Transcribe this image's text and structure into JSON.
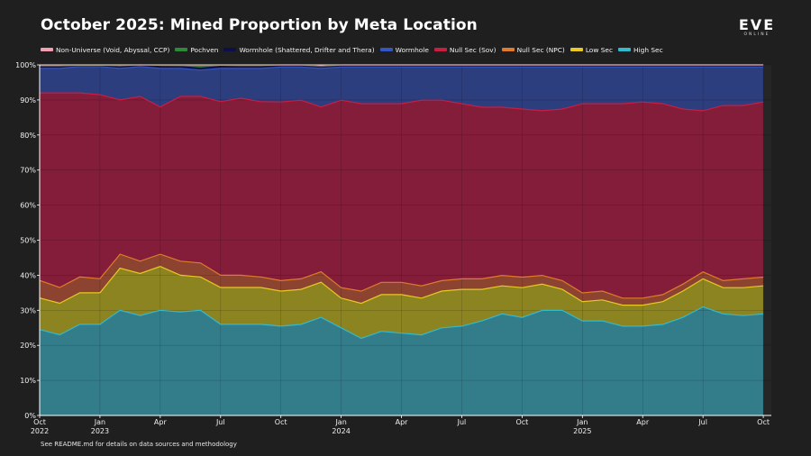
{
  "header": {
    "title": "October 2025: Mined Proportion by Meta Location",
    "logo_main": "EVE",
    "logo_sub": "ONLINE"
  },
  "footnote": "See README.md for details on data sources and methodology",
  "chart_data": {
    "type": "area",
    "stacked": true,
    "normalized": true,
    "title": "October 2025: Mined Proportion by Meta Location",
    "xlabel": "",
    "ylabel": "",
    "ylim": [
      0,
      100
    ],
    "yticks": [
      0,
      10,
      20,
      30,
      40,
      50,
      60,
      70,
      80,
      90,
      100
    ],
    "ytick_labels": [
      "0%",
      "10%",
      "20%",
      "30%",
      "40%",
      "50%",
      "60%",
      "70%",
      "80%",
      "90%",
      "100%"
    ],
    "x": [
      "2022-10",
      "2022-11",
      "2022-12",
      "2023-01",
      "2023-02",
      "2023-03",
      "2023-04",
      "2023-05",
      "2023-06",
      "2023-07",
      "2023-08",
      "2023-09",
      "2023-10",
      "2023-11",
      "2023-12",
      "2024-01",
      "2024-02",
      "2024-03",
      "2024-04",
      "2024-05",
      "2024-06",
      "2024-07",
      "2024-08",
      "2024-09",
      "2024-10",
      "2024-11",
      "2024-12",
      "2025-01",
      "2025-02",
      "2025-03",
      "2025-04",
      "2025-05",
      "2025-06",
      "2025-07",
      "2025-08",
      "2025-09",
      "2025-10"
    ],
    "xticks": [
      {
        "index": 0,
        "label": "Oct",
        "year": "2022"
      },
      {
        "index": 3,
        "label": "Jan",
        "year": "2023"
      },
      {
        "index": 6,
        "label": "Apr",
        "year": ""
      },
      {
        "index": 9,
        "label": "Jul",
        "year": ""
      },
      {
        "index": 12,
        "label": "Oct",
        "year": ""
      },
      {
        "index": 15,
        "label": "Jan",
        "year": "2024"
      },
      {
        "index": 18,
        "label": "Apr",
        "year": ""
      },
      {
        "index": 21,
        "label": "Jul",
        "year": ""
      },
      {
        "index": 24,
        "label": "Oct",
        "year": ""
      },
      {
        "index": 27,
        "label": "Jan",
        "year": "2025"
      },
      {
        "index": 30,
        "label": "Apr",
        "year": ""
      },
      {
        "index": 33,
        "label": "Jul",
        "year": ""
      },
      {
        "index": 36,
        "label": "Oct",
        "year": ""
      }
    ],
    "x_max_index": 36.4,
    "legend_position": "top-left",
    "grid": true,
    "series": [
      {
        "name": "High Sec",
        "color": "#35b9cc",
        "fill": "#337d8b",
        "values": [
          24.5,
          23,
          26,
          26,
          30,
          28.5,
          30,
          29.5,
          30,
          26,
          26,
          26,
          25.5,
          26,
          28,
          25,
          22,
          24,
          23.5,
          23,
          25,
          25.5,
          27,
          29,
          28,
          30,
          30,
          27,
          27,
          25.5,
          25.5,
          26,
          28,
          31,
          29,
          28.5,
          29
        ]
      },
      {
        "name": "Low Sec",
        "color": "#e8c824",
        "fill": "#8c8420",
        "values": [
          9,
          9,
          9,
          9,
          12,
          12,
          12.5,
          10.5,
          9.5,
          10.5,
          10.5,
          10.5,
          10,
          10,
          10,
          8.5,
          10,
          10.5,
          11,
          10.5,
          10.5,
          10.5,
          9,
          8,
          8.5,
          7.5,
          6,
          5.5,
          6,
          6,
          6,
          6.5,
          7.5,
          8,
          7.5,
          8,
          8
        ]
      },
      {
        "name": "Null Sec (NPC)",
        "color": "#e07a2c",
        "fill": "#8c4430",
        "values": [
          5,
          4.5,
          4.5,
          4,
          4,
          3.5,
          3.5,
          4,
          4,
          3.5,
          3.5,
          3,
          3,
          3,
          3,
          3,
          3.5,
          3.5,
          3.5,
          3.5,
          3,
          3,
          3,
          3,
          3,
          2.5,
          2.5,
          2.5,
          2.5,
          2,
          2,
          2,
          2,
          2,
          2,
          2.5,
          2.5
        ]
      },
      {
        "name": "Null Sec (Sov)",
        "color": "#c81e42",
        "fill": "#831d3a",
        "values": [
          53.5,
          55.5,
          52.5,
          52.5,
          44,
          47,
          42,
          47,
          47.5,
          49.5,
          50.5,
          50,
          51,
          51,
          47,
          53.5,
          53.5,
          51,
          51,
          53,
          51.5,
          50,
          49,
          48,
          48,
          47,
          49,
          54,
          53.5,
          55.5,
          56,
          54.5,
          50,
          46,
          50,
          49.5,
          50
        ]
      },
      {
        "name": "Wormhole",
        "color": "#3456c0",
        "fill": "#2d3e7e",
        "values": [
          7,
          7,
          7.5,
          8,
          9,
          8.5,
          11,
          8,
          7.5,
          9.5,
          8.5,
          9.5,
          10,
          9.5,
          11,
          9.5,
          10.5,
          10.5,
          10.5,
          9.5,
          9.5,
          10.5,
          11.5,
          11.5,
          12,
          12.5,
          12,
          10.5,
          10.5,
          10.5,
          10,
          10.5,
          12,
          12.5,
          11,
          11,
          10
        ]
      },
      {
        "name": "Wormhole (Shattered, Drifter and Thera)",
        "color": "#0b1048",
        "fill": "#0e1550",
        "values": [
          0.5,
          0.5,
          0.3,
          0.3,
          0.4,
          0.4,
          0.5,
          0.5,
          0.6,
          0.6,
          0.5,
          0.5,
          0.5,
          0.5,
          0.5,
          0.5,
          0.5,
          0.5,
          0.5,
          0.5,
          0.5,
          0.5,
          0.5,
          0.5,
          0.5,
          0.5,
          0.5,
          0.5,
          0.5,
          0.5,
          0.5,
          0.5,
          0.5,
          0.5,
          0.5,
          0.5,
          0.5
        ]
      },
      {
        "name": "Pochven",
        "color": "#2d8a3a",
        "fill": "#2d8a3a",
        "values": [
          0.2,
          0.2,
          0.1,
          0.1,
          0.4,
          0.1,
          0.4,
          0.3,
          0.8,
          0.3,
          0.3,
          0.3,
          0.1,
          0.1,
          0.1,
          0.1,
          0.1,
          0.1,
          0.1,
          0.1,
          0.1,
          0.1,
          0.1,
          0.1,
          0.1,
          0.1,
          0.1,
          0.1,
          0.1,
          0.1,
          0.1,
          0.1,
          0.1,
          0.1,
          0.1,
          0.1,
          0.1
        ]
      },
      {
        "name": "Non-Universe (Void, Abyssal, CCP)",
        "color": "#f0a0b0",
        "fill": "#e8c8d8",
        "values": [
          0.3,
          0.3,
          0.1,
          0.1,
          0.2,
          0.0,
          0.1,
          0.2,
          0.1,
          0.1,
          0.2,
          0.2,
          0.0,
          0.0,
          0.4,
          0.0,
          0.0,
          0.0,
          0.0,
          0.0,
          0.0,
          0.0,
          0.0,
          0.0,
          0.0,
          0.0,
          0.0,
          0.0,
          0.0,
          0.0,
          0.0,
          0.0,
          0.0,
          0.0,
          0.0,
          0.0,
          0.0
        ]
      }
    ],
    "legend_order": [
      "Non-Universe (Void, Abyssal, CCP)",
      "Pochven",
      "Wormhole (Shattered, Drifter and Thera)",
      "Wormhole",
      "Null Sec (Sov)",
      "Null Sec (NPC)",
      "Low Sec",
      "High Sec"
    ]
  }
}
